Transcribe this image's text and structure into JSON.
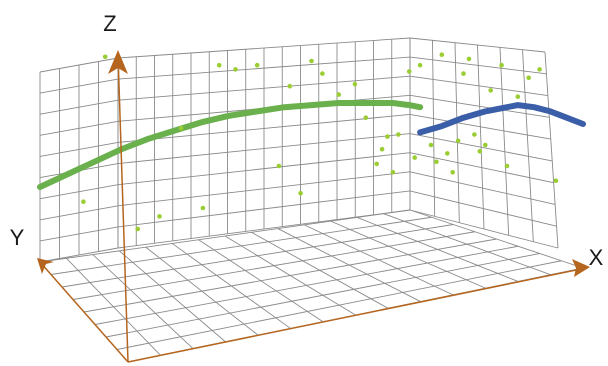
{
  "chart_data": {
    "type": "scatter",
    "view": "3d-perspective",
    "grid": true,
    "axes": {
      "x": {
        "label": "X"
      },
      "y": {
        "label": "Y"
      },
      "z": {
        "label": "Z"
      }
    },
    "colors": {
      "grid": "#8a8a8a",
      "axis": "#b5651d",
      "curve_left": "#6ab04c",
      "curve_right": "#3b5ea8",
      "points": "#9acd32"
    },
    "series": [
      {
        "kind": "line",
        "color": "#6ab04c",
        "points": [
          [
            0.0,
            0.3
          ],
          [
            0.05,
            0.36
          ],
          [
            0.1,
            0.42
          ],
          [
            0.15,
            0.48
          ],
          [
            0.2,
            0.53
          ],
          [
            0.25,
            0.57
          ],
          [
            0.3,
            0.61
          ],
          [
            0.35,
            0.64
          ],
          [
            0.4,
            0.66
          ],
          [
            0.45,
            0.68
          ],
          [
            0.5,
            0.69
          ],
          [
            0.55,
            0.7
          ],
          [
            0.6,
            0.7
          ],
          [
            0.65,
            0.7
          ],
          [
            0.68,
            0.69
          ],
          [
            0.7,
            0.68
          ]
        ]
      },
      {
        "kind": "line",
        "color": "#3b5ea8",
        "points": [
          [
            0.7,
            0.56
          ],
          [
            0.74,
            0.59
          ],
          [
            0.78,
            0.63
          ],
          [
            0.82,
            0.66
          ],
          [
            0.86,
            0.68
          ],
          [
            0.88,
            0.69
          ],
          [
            0.91,
            0.68
          ],
          [
            0.94,
            0.66
          ],
          [
            0.97,
            0.63
          ],
          [
            1.0,
            0.6
          ]
        ]
      },
      {
        "kind": "scatter",
        "color": "#9acd32",
        "points": [
          [
            0.08,
            0.23
          ],
          [
            0.12,
            0.92
          ],
          [
            0.18,
            0.1
          ],
          [
            0.22,
            0.16
          ],
          [
            0.26,
            0.58
          ],
          [
            0.3,
            0.2
          ],
          [
            0.33,
            0.88
          ],
          [
            0.36,
            0.86
          ],
          [
            0.4,
            0.88
          ],
          [
            0.44,
            0.4
          ],
          [
            0.46,
            0.78
          ],
          [
            0.48,
            0.27
          ],
          [
            0.5,
            0.9
          ],
          [
            0.52,
            0.84
          ],
          [
            0.55,
            0.74
          ],
          [
            0.58,
            0.79
          ],
          [
            0.6,
            0.63
          ],
          [
            0.62,
            0.41
          ],
          [
            0.63,
            0.48
          ],
          [
            0.64,
            0.54
          ],
          [
            0.65,
            0.37
          ],
          [
            0.66,
            0.55
          ],
          [
            0.68,
            0.85
          ],
          [
            0.69,
            0.44
          ],
          [
            0.7,
            0.88
          ],
          [
            0.72,
            0.5
          ],
          [
            0.73,
            0.42
          ],
          [
            0.74,
            0.93
          ],
          [
            0.75,
            0.46
          ],
          [
            0.76,
            0.37
          ],
          [
            0.77,
            0.52
          ],
          [
            0.78,
            0.84
          ],
          [
            0.79,
            0.91
          ],
          [
            0.8,
            0.55
          ],
          [
            0.81,
            0.47
          ],
          [
            0.82,
            0.5
          ],
          [
            0.83,
            0.76
          ],
          [
            0.85,
            0.88
          ],
          [
            0.86,
            0.4
          ],
          [
            0.88,
            0.73
          ],
          [
            0.9,
            0.82
          ],
          [
            0.92,
            0.86
          ],
          [
            0.95,
            0.33
          ]
        ]
      }
    ]
  }
}
